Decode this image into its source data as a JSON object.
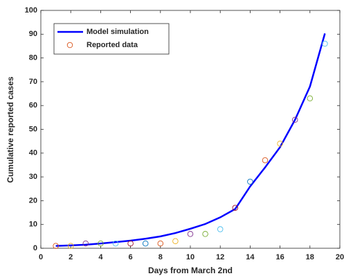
{
  "chart_data": {
    "type": "line",
    "xlabel": "Days from March 2nd",
    "ylabel": "Cumulative reported cases",
    "x": [
      1,
      2,
      3,
      4,
      5,
      6,
      7,
      8,
      9,
      10,
      11,
      12,
      13,
      14,
      15,
      16,
      17,
      18,
      19
    ],
    "series": [
      {
        "name": "Model simulation",
        "color": "#0000ff",
        "style": "line",
        "values": [
          1,
          1.2,
          1.5,
          2,
          2.6,
          3.2,
          4,
          5,
          6.4,
          8.2,
          10.2,
          13,
          16.5,
          26,
          34,
          42.5,
          54,
          68,
          90.3
        ]
      },
      {
        "name": "Reported data",
        "color": "#d95319",
        "style": "scatter",
        "colors": [
          "#d95319",
          "#edb120",
          "#7e2f8e",
          "#77ac30",
          "#4dbeee",
          "#a2142f",
          "#0072bd",
          "#d95319",
          "#edb120",
          "#7e2f8e",
          "#77ac30",
          "#4dbeee",
          "#a2142f",
          "#0072bd",
          "#d95319",
          "#edb120",
          "#7e2f8e",
          "#77ac30",
          "#4dbeee"
        ],
        "values": [
          1,
          1,
          2,
          2,
          2,
          2,
          2,
          2,
          3,
          6,
          6,
          8,
          17,
          28,
          37,
          44,
          54,
          63,
          86
        ]
      }
    ],
    "xlim": [
      0,
      20
    ],
    "xticks": [
      0,
      2,
      4,
      6,
      8,
      10,
      12,
      14,
      16,
      18,
      20
    ],
    "ylim": [
      0,
      100
    ],
    "yticks": [
      0,
      10,
      20,
      30,
      40,
      50,
      60,
      70,
      80,
      90,
      100
    ],
    "legend": "upper left"
  }
}
